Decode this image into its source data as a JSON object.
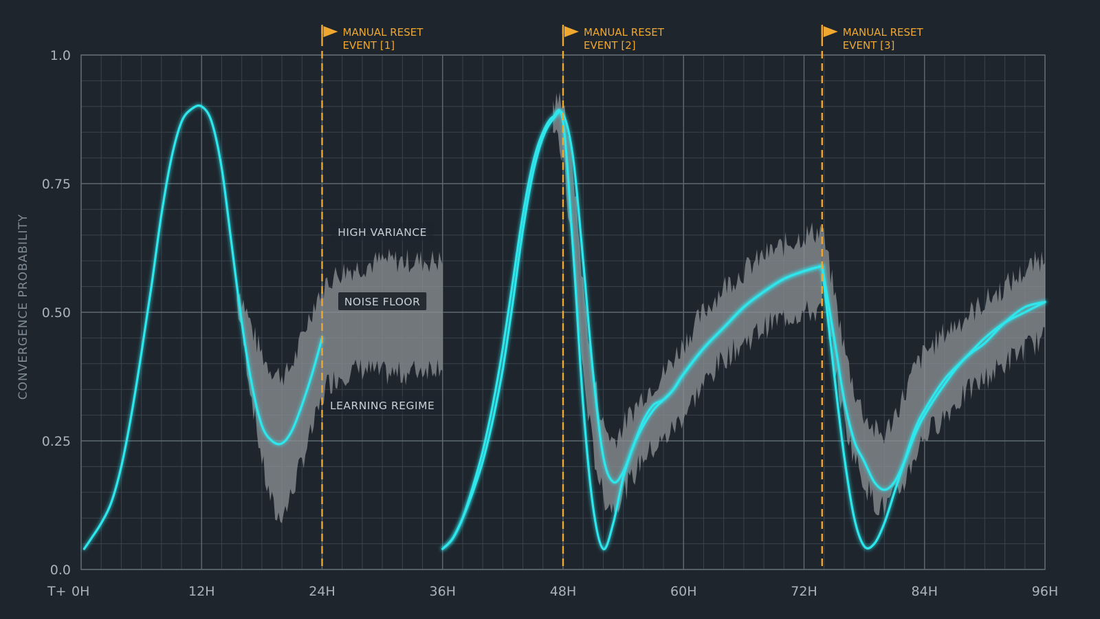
{
  "chart_data": {
    "type": "line",
    "title": "",
    "xlabel": "",
    "ylabel": "CONVERGENCE PROBABILITY",
    "x_prefix": "T+",
    "xlim": [
      0,
      96
    ],
    "ylim": [
      0,
      1
    ],
    "x_ticks": [
      {
        "value": 0,
        "label": "0H"
      },
      {
        "value": 12,
        "label": "12H"
      },
      {
        "value": 24,
        "label": "24H"
      },
      {
        "value": 36,
        "label": "36H"
      },
      {
        "value": 48,
        "label": "48H"
      },
      {
        "value": 60,
        "label": "60H"
      },
      {
        "value": 72,
        "label": "72H"
      },
      {
        "value": 84,
        "label": "84H"
      },
      {
        "value": 96,
        "label": "96H"
      }
    ],
    "y_ticks": [
      {
        "value": 0,
        "label": "0.0"
      },
      {
        "value": 0.25,
        "label": "0.25"
      },
      {
        "value": 0.5,
        "label": "0.50"
      },
      {
        "value": 0.75,
        "label": "0.75"
      },
      {
        "value": 1.0,
        "label": "1.0"
      }
    ],
    "grid": true,
    "colors": {
      "background": "#1e252d",
      "grid_minor": "#3a444d",
      "grid_major": "#5f6a73",
      "line": "#2ee6ec",
      "band": "#8a8e92",
      "event": "#f0a830"
    },
    "events": [
      {
        "x": 24,
        "line1": "MANUAL RESET",
        "line2": "EVENT [1]"
      },
      {
        "x": 48,
        "line1": "MANUAL RESET",
        "line2": "EVENT [2]"
      },
      {
        "x": 73.8,
        "line1": "MANUAL RESET",
        "line2": "EVENT [3]"
      }
    ],
    "annotations": [
      {
        "text": "HIGH VARIANCE",
        "x": 30,
        "y": 0.655
      },
      {
        "text": "NOISE FLOOR",
        "x": 30,
        "y": 0.52,
        "boxed": true
      },
      {
        "text": "LEARNING REGIME",
        "x": 30,
        "y": 0.318
      }
    ],
    "bands": [
      {
        "name": "",
        "x": [
          15.5,
          16.5,
          17.5,
          18.5,
          19.5,
          20.5,
          21.5,
          22.5,
          23.5,
          24.5,
          26,
          28,
          30,
          32,
          34,
          36
        ],
        "upper": [
          0.56,
          0.5,
          0.44,
          0.4,
          0.38,
          0.38,
          0.42,
          0.48,
          0.53,
          0.56,
          0.58,
          0.59,
          0.6,
          0.6,
          0.6,
          0.6
        ],
        "lower": [
          0.52,
          0.4,
          0.27,
          0.16,
          0.1,
          0.12,
          0.18,
          0.24,
          0.3,
          0.36,
          0.38,
          0.39,
          0.38,
          0.38,
          0.39,
          0.4
        ]
      },
      {
        "name": "",
        "x": [
          47,
          48,
          49,
          50,
          51,
          52,
          53,
          54,
          55,
          56,
          58,
          60,
          62,
          64,
          66,
          68,
          70,
          72,
          73.8
        ],
        "upper": [
          0.9,
          0.92,
          0.78,
          0.55,
          0.38,
          0.28,
          0.25,
          0.28,
          0.31,
          0.34,
          0.38,
          0.44,
          0.5,
          0.55,
          0.58,
          0.61,
          0.63,
          0.65,
          0.66
        ],
        "lower": [
          0.85,
          0.8,
          0.6,
          0.38,
          0.23,
          0.14,
          0.12,
          0.15,
          0.18,
          0.22,
          0.25,
          0.3,
          0.36,
          0.41,
          0.44,
          0.47,
          0.49,
          0.5,
          0.5
        ]
      },
      {
        "name": "",
        "x": [
          73.8,
          75,
          76,
          77,
          78,
          79,
          80,
          81,
          82,
          83,
          84,
          86,
          88,
          90,
          92,
          94,
          96
        ],
        "upper": [
          0.66,
          0.54,
          0.43,
          0.35,
          0.3,
          0.27,
          0.26,
          0.3,
          0.34,
          0.39,
          0.42,
          0.46,
          0.49,
          0.52,
          0.55,
          0.58,
          0.61
        ],
        "lower": [
          0.56,
          0.4,
          0.29,
          0.22,
          0.17,
          0.13,
          0.12,
          0.14,
          0.17,
          0.22,
          0.26,
          0.3,
          0.34,
          0.37,
          0.4,
          0.43,
          0.45
        ]
      }
    ],
    "series": [
      {
        "name": "",
        "x": [
          0.3,
          1,
          2,
          3,
          4,
          5,
          6,
          7,
          8,
          9,
          10,
          11,
          12,
          13,
          14,
          15,
          16,
          17,
          18,
          19,
          20,
          21,
          22,
          23,
          24
        ],
        "y": [
          0.04,
          0.06,
          0.09,
          0.13,
          0.2,
          0.3,
          0.42,
          0.55,
          0.69,
          0.8,
          0.87,
          0.895,
          0.9,
          0.87,
          0.78,
          0.63,
          0.48,
          0.36,
          0.28,
          0.25,
          0.245,
          0.27,
          0.32,
          0.38,
          0.45
        ]
      },
      {
        "name": "",
        "x": [
          36,
          37,
          38,
          39,
          40,
          41,
          42,
          43,
          44,
          45,
          46,
          47,
          48,
          49,
          50,
          51,
          52,
          53,
          54,
          55,
          56,
          57,
          58,
          59,
          60,
          62,
          64,
          66,
          68,
          70,
          72,
          73.8
        ],
        "y": [
          0.04,
          0.06,
          0.1,
          0.15,
          0.21,
          0.29,
          0.39,
          0.52,
          0.66,
          0.77,
          0.84,
          0.875,
          0.885,
          0.8,
          0.6,
          0.38,
          0.22,
          0.17,
          0.19,
          0.24,
          0.29,
          0.32,
          0.33,
          0.35,
          0.38,
          0.43,
          0.47,
          0.51,
          0.54,
          0.565,
          0.58,
          0.59
        ]
      },
      {
        "name": "",
        "x": [
          36,
          37,
          38,
          39,
          40,
          41,
          42,
          43,
          44,
          45,
          46,
          47,
          48,
          49,
          50,
          51,
          52,
          53,
          54,
          55,
          56,
          57,
          58,
          59,
          60,
          62,
          64,
          66,
          68,
          70,
          72,
          73.8
        ],
        "y": [
          0.04,
          0.06,
          0.1,
          0.16,
          0.23,
          0.32,
          0.43,
          0.56,
          0.69,
          0.79,
          0.85,
          0.88,
          0.87,
          0.62,
          0.32,
          0.12,
          0.04,
          0.09,
          0.18,
          0.24,
          0.28,
          0.31,
          0.33,
          0.35,
          0.38,
          0.43,
          0.47,
          0.51,
          0.54,
          0.565,
          0.58,
          0.59
        ]
      },
      {
        "name": "",
        "x": [
          73.8,
          75,
          76,
          77,
          78,
          79,
          80,
          81,
          82,
          83,
          84,
          86,
          88,
          90,
          92,
          94,
          96
        ],
        "y": [
          0.59,
          0.45,
          0.33,
          0.25,
          0.21,
          0.17,
          0.155,
          0.17,
          0.21,
          0.26,
          0.3,
          0.36,
          0.41,
          0.44,
          0.48,
          0.51,
          0.52
        ]
      },
      {
        "name": "",
        "x": [
          73.8,
          75,
          76,
          77,
          78,
          79,
          80,
          81,
          82,
          83,
          84,
          86,
          88,
          90,
          92,
          94,
          96
        ],
        "y": [
          0.59,
          0.38,
          0.22,
          0.1,
          0.045,
          0.05,
          0.09,
          0.15,
          0.21,
          0.27,
          0.31,
          0.37,
          0.41,
          0.45,
          0.48,
          0.5,
          0.52
        ]
      }
    ]
  }
}
